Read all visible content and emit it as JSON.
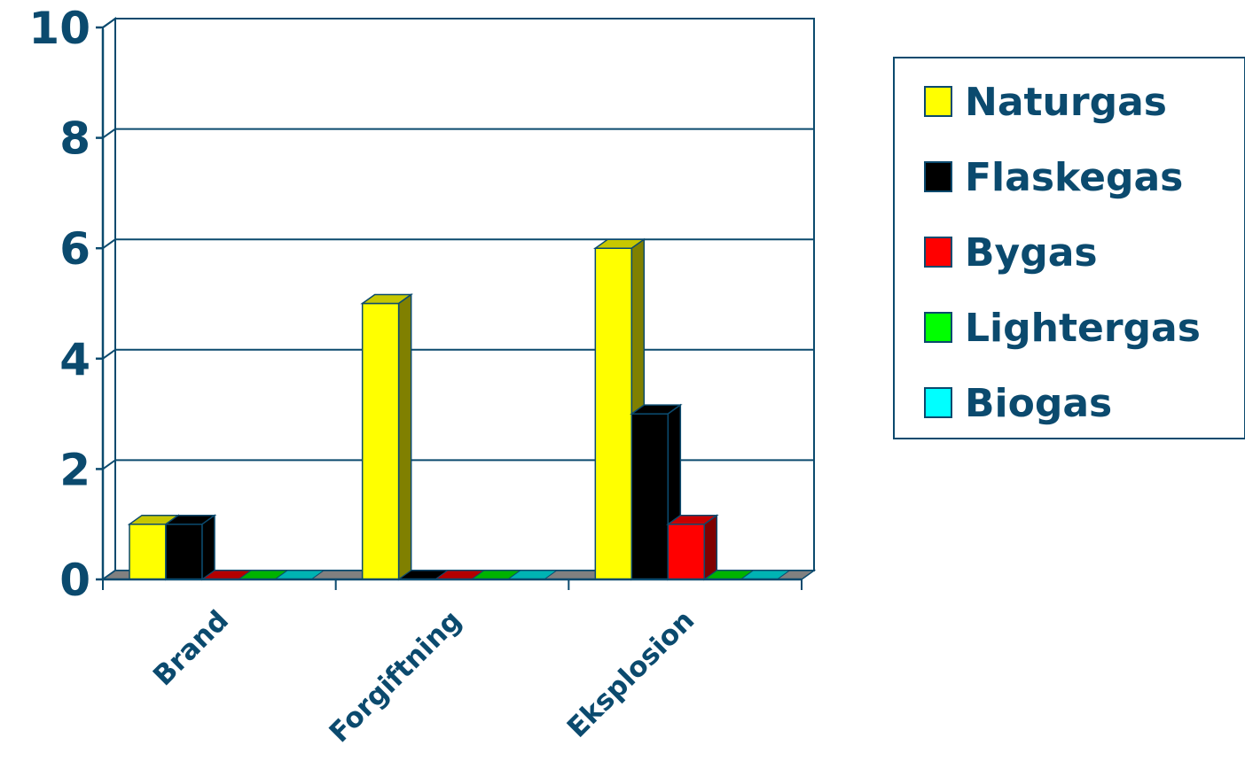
{
  "chart_data": {
    "type": "bar",
    "categories": [
      "Brand",
      "Forgiftning",
      "Eksplosion"
    ],
    "series": [
      {
        "name": "Naturgas",
        "values": [
          1,
          5,
          6
        ],
        "color": "#ffff00"
      },
      {
        "name": "Flaskegas",
        "values": [
          1,
          0,
          3
        ],
        "color": "#000000"
      },
      {
        "name": "Bygas",
        "values": [
          0,
          0,
          1
        ],
        "color": "#ff0000"
      },
      {
        "name": "Lightergas",
        "values": [
          0,
          0,
          0
        ],
        "color": "#00ff00"
      },
      {
        "name": "Biogas",
        "values": [
          0,
          0,
          0
        ],
        "color": "#00ffff"
      }
    ],
    "yticks": [
      "0",
      "2",
      "4",
      "6",
      "8",
      "10"
    ],
    "ylim": [
      0,
      10
    ],
    "grid": true,
    "legend": "right",
    "title": "",
    "xlabel": "",
    "ylabel": "",
    "colors": {
      "text": "#0b4a6e",
      "axis": "#0b4a6e",
      "floor": "#808080"
    }
  }
}
